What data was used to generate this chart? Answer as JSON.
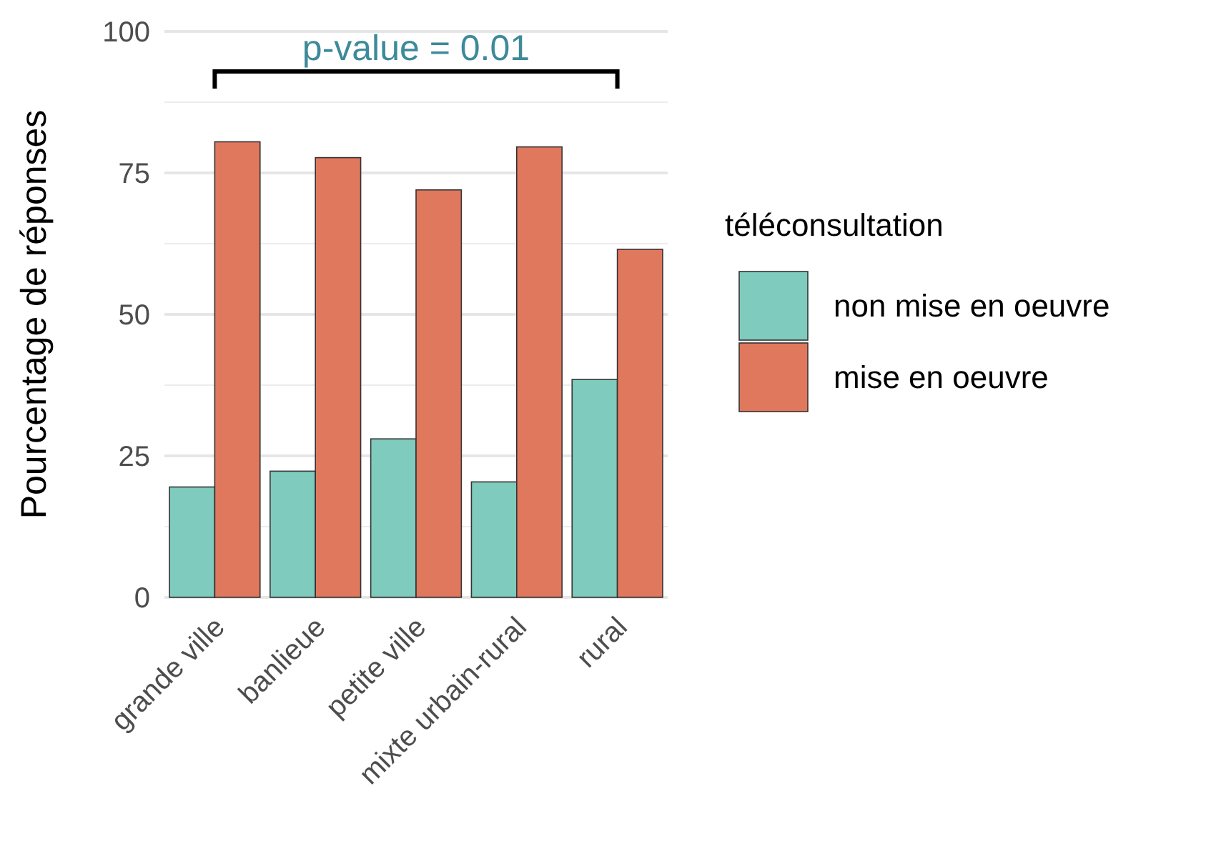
{
  "chart_data": {
    "type": "bar",
    "ylabel": "Pourcentage de réponses",
    "legend_title": "téléconsultation",
    "categories": [
      "grande ville",
      "banlieue",
      "petite ville",
      "mixte urbain-rural",
      "rural"
    ],
    "series": [
      {
        "name": "non mise en oeuvre",
        "color": "#7fcbbd",
        "values": [
          19.5,
          22.3,
          28,
          20.4,
          38.5
        ]
      },
      {
        "name": "mise en oeuvre",
        "color": "#e0785d",
        "values": [
          80.5,
          77.7,
          72,
          79.6,
          61.5
        ]
      }
    ],
    "ylim": [
      0,
      100
    ],
    "yticks": [
      0,
      25,
      50,
      75,
      100
    ],
    "grid": "y",
    "legend": "right",
    "annotations": [
      "p-value = 0.01"
    ]
  }
}
